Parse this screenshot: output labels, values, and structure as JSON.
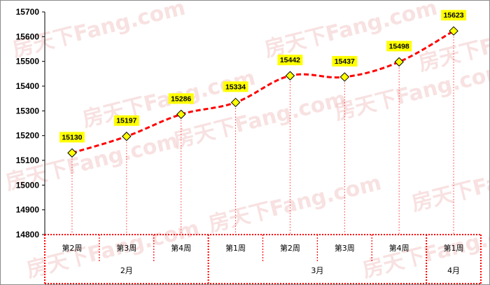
{
  "chart_data": {
    "type": "line",
    "ylim": [
      14800,
      15700
    ],
    "yticks": [
      14800,
      14900,
      15000,
      15100,
      15200,
      15300,
      15400,
      15500,
      15600,
      15700
    ],
    "categories": [
      "第2周",
      "第3周",
      "第4周",
      "第1周",
      "第2周",
      "第3周",
      "第4周",
      "第1周"
    ],
    "months": [
      {
        "label": "2月",
        "span": 3
      },
      {
        "label": "3月",
        "span": 4
      },
      {
        "label": "4月",
        "span": 1
      }
    ],
    "series": [
      {
        "values": [
          15130,
          15197,
          15286,
          15334,
          15442,
          15437,
          15498,
          15623
        ]
      }
    ],
    "colors": {
      "line": "#ff0000",
      "marker": "#ffff00",
      "label_bg": "#ffff00",
      "grid": "#ff0000"
    },
    "grid": true
  },
  "watermark": "房天下Fang.com"
}
